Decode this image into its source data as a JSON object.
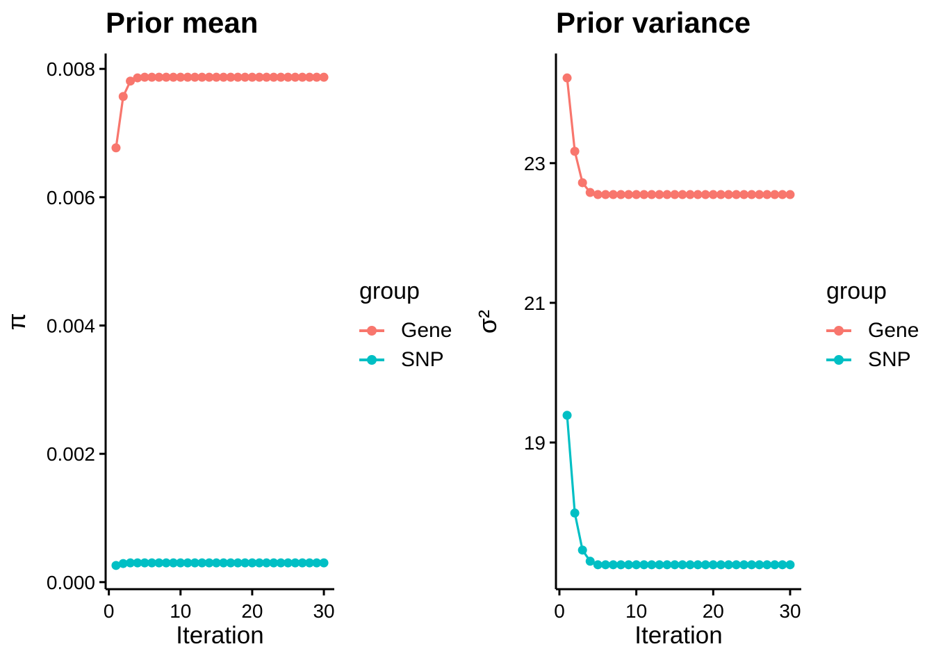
{
  "figure": {
    "background": "#ffffff",
    "text_color": "#000000"
  },
  "chart_data": [
    {
      "type": "line",
      "title": "Prior mean",
      "xlabel": "Iteration",
      "ylabel": "π",
      "legend_title": "group",
      "legend_position": "right",
      "grid": false,
      "x": [
        1,
        2,
        3,
        4,
        5,
        6,
        7,
        8,
        9,
        10,
        11,
        12,
        13,
        14,
        15,
        16,
        17,
        18,
        19,
        20,
        21,
        22,
        23,
        24,
        25,
        26,
        27,
        28,
        29,
        30
      ],
      "xlim": [
        -0.45,
        31.45
      ],
      "ylim": [
        -0.00011,
        0.00824
      ],
      "x_ticks": [
        0,
        10,
        20,
        30
      ],
      "x_tick_labels": [
        "0",
        "10",
        "20",
        "30"
      ],
      "y_ticks": [
        0,
        0.002,
        0.004,
        0.006,
        0.008
      ],
      "y_tick_labels": [
        "0.000",
        "0.002",
        "0.004",
        "0.006",
        "0.008"
      ],
      "series": [
        {
          "name": "Gene",
          "color": "#F8766D",
          "values": [
            0.00677,
            0.00757,
            0.00781,
            0.00786,
            0.00787,
            0.00787,
            0.00787,
            0.00787,
            0.00787,
            0.00787,
            0.00787,
            0.00787,
            0.00787,
            0.00787,
            0.00787,
            0.00787,
            0.00787,
            0.00787,
            0.00787,
            0.00787,
            0.00787,
            0.00787,
            0.00787,
            0.00787,
            0.00787,
            0.00787,
            0.00787,
            0.00787,
            0.00787,
            0.00787
          ]
        },
        {
          "name": "SNP",
          "color": "#00BFC4",
          "values": [
            0.00026,
            0.00029,
            0.0003,
            0.0003,
            0.0003,
            0.0003,
            0.0003,
            0.0003,
            0.0003,
            0.0003,
            0.0003,
            0.0003,
            0.0003,
            0.0003,
            0.0003,
            0.0003,
            0.0003,
            0.0003,
            0.0003,
            0.0003,
            0.0003,
            0.0003,
            0.0003,
            0.0003,
            0.0003,
            0.0003,
            0.0003,
            0.0003,
            0.0003,
            0.0003
          ]
        }
      ]
    },
    {
      "type": "line",
      "title": "Prior variance",
      "xlabel": "Iteration",
      "ylabel": "σ²",
      "legend_title": "group",
      "legend_position": "right",
      "grid": false,
      "x": [
        1,
        2,
        3,
        4,
        5,
        6,
        7,
        8,
        9,
        10,
        11,
        12,
        13,
        14,
        15,
        16,
        17,
        18,
        19,
        20,
        21,
        22,
        23,
        24,
        25,
        26,
        27,
        28,
        29,
        30
      ],
      "xlim": [
        -0.45,
        31.45
      ],
      "ylim": [
        16.9,
        24.57
      ],
      "x_ticks": [
        0,
        10,
        20,
        30
      ],
      "x_tick_labels": [
        "0",
        "10",
        "20",
        "30"
      ],
      "y_ticks": [
        19,
        21,
        23
      ],
      "y_tick_labels": [
        "19",
        "21",
        "23"
      ],
      "series": [
        {
          "name": "Gene",
          "color": "#F8766D",
          "values": [
            24.22,
            23.17,
            22.72,
            22.58,
            22.55,
            22.55,
            22.55,
            22.55,
            22.55,
            22.55,
            22.55,
            22.55,
            22.55,
            22.55,
            22.55,
            22.55,
            22.55,
            22.55,
            22.55,
            22.55,
            22.55,
            22.55,
            22.55,
            22.55,
            22.55,
            22.55,
            22.55,
            22.55,
            22.55,
            22.55
          ]
        },
        {
          "name": "SNP",
          "color": "#00BFC4",
          "values": [
            19.39,
            17.99,
            17.46,
            17.3,
            17.25,
            17.25,
            17.25,
            17.25,
            17.25,
            17.25,
            17.25,
            17.25,
            17.25,
            17.25,
            17.25,
            17.25,
            17.25,
            17.25,
            17.25,
            17.25,
            17.25,
            17.25,
            17.25,
            17.25,
            17.25,
            17.25,
            17.25,
            17.25,
            17.25,
            17.25
          ]
        }
      ]
    }
  ]
}
